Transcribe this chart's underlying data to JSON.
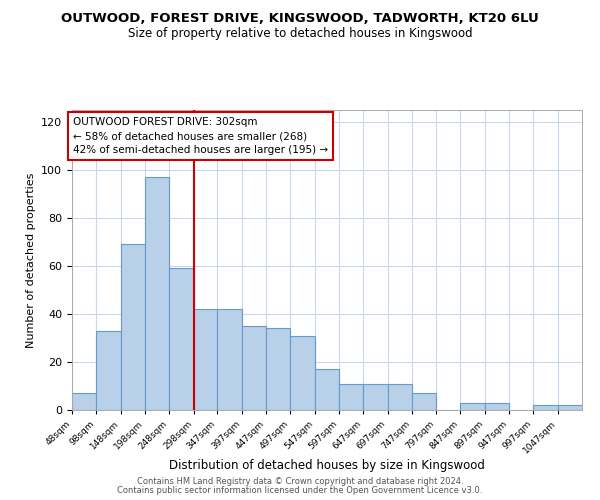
{
  "title": "OUTWOOD, FOREST DRIVE, KINGSWOOD, TADWORTH, KT20 6LU",
  "subtitle": "Size of property relative to detached houses in Kingswood",
  "xlabel": "Distribution of detached houses by size in Kingswood",
  "ylabel": "Number of detached properties",
  "bar_color": "#b8d0e8",
  "bar_edge_color": "#6699cc",
  "vline_value": 298,
  "vline_color": "#cc0000",
  "annotation_title": "OUTWOOD FOREST DRIVE: 302sqm",
  "annotation_line1": "← 58% of detached houses are smaller (268)",
  "annotation_line2": "42% of semi-detached houses are larger (195) →",
  "bin_edges": [
    48,
    98,
    148,
    198,
    248,
    298,
    347,
    397,
    447,
    497,
    547,
    597,
    647,
    697,
    747,
    797,
    847,
    897,
    947,
    997,
    1047
  ],
  "bin_labels": [
    "48sqm",
    "98sqm",
    "148sqm",
    "198sqm",
    "248sqm",
    "298sqm",
    "347sqm",
    "397sqm",
    "447sqm",
    "497sqm",
    "547sqm",
    "597sqm",
    "647sqm",
    "697sqm",
    "747sqm",
    "797sqm",
    "847sqm",
    "897sqm",
    "947sqm",
    "997sqm",
    "1047sqm"
  ],
  "counts": [
    7,
    33,
    69,
    97,
    59,
    42,
    42,
    35,
    34,
    31,
    17,
    11,
    11,
    11,
    7,
    0,
    3,
    3,
    0,
    2,
    2
  ],
  "ylim": [
    0,
    125
  ],
  "yticks": [
    0,
    20,
    40,
    60,
    80,
    100,
    120
  ],
  "footer1": "Contains HM Land Registry data © Crown copyright and database right 2024.",
  "footer2": "Contains public sector information licensed under the Open Government Licence v3.0.",
  "bg_color": "#ffffff",
  "grid_color": "#c8d8ea"
}
